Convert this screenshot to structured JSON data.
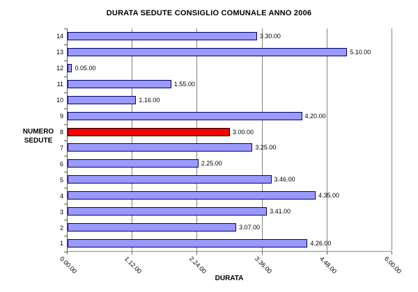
{
  "title": "DURATA SEDUTE CONSIGLIO COMUNALE ANNO 2006",
  "chart_data": {
    "type": "bar",
    "orientation": "horizontal",
    "title": "DURATA SEDUTE CONSIGLIO COMUNALE ANNO 2006",
    "xlabel": "DURATA",
    "ylabel_line1": "NUMERO",
    "ylabel_line2": "SEDUTE",
    "categories": [
      "14",
      "13",
      "12",
      "11",
      "10",
      "9",
      "8",
      "7",
      "6",
      "5",
      "4",
      "3",
      "2",
      "1"
    ],
    "values_label": [
      "3.30.00",
      "5.10.00",
      "0.05.00",
      "1.55.00",
      "1.16.00",
      "4.20.00",
      "3.00.00",
      "3.25.00",
      "2.25.00",
      "3.46.00",
      "4.35.00",
      "3.41.00",
      "3.07.00",
      "4.26.00"
    ],
    "values_hours": [
      3.5,
      5.1667,
      0.0833,
      1.9167,
      1.2667,
      4.3333,
      3.0,
      3.4167,
      2.4167,
      3.7667,
      4.5833,
      3.6833,
      3.1167,
      4.4333
    ],
    "x_tick_labels": [
      "0.00.00",
      "1.12.00",
      "2.24.00",
      "3.36.00",
      "4.48.00",
      "6.00.00"
    ],
    "x_tick_hours": [
      0,
      1.2,
      2.4,
      3.6,
      4.8,
      6
    ],
    "xlim_hours": [
      0,
      6
    ],
    "highlighted_category": "8",
    "legend": "none",
    "grid": "vertical",
    "colors": {
      "bar_fill": "#9999FF",
      "bar_border": "#000066",
      "highlight_fill": "#FF0000",
      "highlight_border": "#000000",
      "gridline": "#808080",
      "axis": "#555555",
      "background": "#FFFFFF"
    }
  }
}
